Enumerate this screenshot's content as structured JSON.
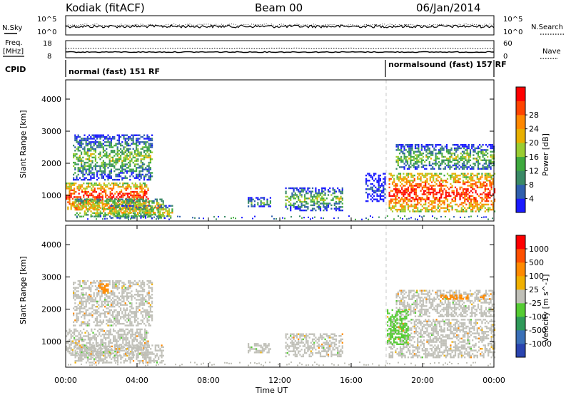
{
  "header": {
    "station": "Kodiak (fitACF)",
    "beam": "Beam 00",
    "date": "06/Jan/2014"
  },
  "noise_panel": {
    "left_label": "N.Sky",
    "right_label": "N.Search",
    "top_tick": "10^5",
    "bottom_tick": "10^0"
  },
  "freq_panel": {
    "left_label_1": "Freq.",
    "left_label_2": "[MHz]",
    "right_label": "Nave",
    "left_ticks": [
      "18",
      "8"
    ],
    "right_ticks": [
      "60",
      "0"
    ]
  },
  "cpid_panel": {
    "label": "CPID",
    "segments": [
      "normal (fast) 151 RF",
      "normalsound (fast) 157 RF"
    ]
  },
  "colors": {
    "power_scale": [
      "#1a1aff",
      "#2f5fae",
      "#3a8a66",
      "#3faa3f",
      "#9acd32",
      "#e8b000",
      "#ff8800",
      "#ff4400",
      "#ff0000"
    ],
    "velocity_scale": [
      "#2a44b0",
      "#3a70b8",
      "#2f9a5a",
      "#55cc33",
      "#c0c0b8",
      "#f0b000",
      "#ff8a00",
      "#ff5000",
      "#ff0000"
    ],
    "grey": "#bdbdb5"
  },
  "chart_data": [
    {
      "type": "heatmap",
      "name": "power",
      "xlabel": "",
      "ylabel": "Slant Range [km]",
      "xlim": [
        0,
        24
      ],
      "ylim": [
        200,
        4600
      ],
      "yticks": [
        "1000",
        "2000",
        "3000",
        "4000"
      ],
      "colorbar": {
        "label": "Power [dB]",
        "ticks": [
          "4",
          "8",
          "12",
          "16",
          "20",
          "24",
          "28"
        ]
      },
      "echo_regions": [
        {
          "t0": 0.0,
          "t1": 4.6,
          "r0": 600,
          "r1": 1400,
          "level": 8
        },
        {
          "t0": 0.5,
          "t1": 5.5,
          "r0": 350,
          "r1": 900,
          "level": 6
        },
        {
          "t0": 0.4,
          "t1": 4.8,
          "r0": 1500,
          "r1": 2900,
          "level": 4
        },
        {
          "t0": 2.5,
          "t1": 6.0,
          "r0": 300,
          "r1": 700,
          "level": 5
        },
        {
          "t0": 10.2,
          "t1": 11.5,
          "r0": 650,
          "r1": 950,
          "level": 3
        },
        {
          "t0": 12.3,
          "t1": 15.5,
          "r0": 550,
          "r1": 1250,
          "level": 4
        },
        {
          "t0": 16.8,
          "t1": 17.9,
          "r0": 800,
          "r1": 1700,
          "level": 1
        },
        {
          "t0": 18.1,
          "t1": 24.0,
          "r0": 500,
          "r1": 1700,
          "level": 8
        },
        {
          "t0": 18.5,
          "t1": 24.0,
          "r0": 1800,
          "r1": 2600,
          "level": 4
        }
      ]
    },
    {
      "type": "heatmap",
      "name": "velocity",
      "xlabel": "Time UT",
      "ylabel": "Slant Range [km]",
      "xlim": [
        0,
        24
      ],
      "ylim": [
        200,
        4600
      ],
      "xticks": [
        "00:00",
        "04:00",
        "08:00",
        "12:00",
        "16:00",
        "20:00",
        "00:00"
      ],
      "yticks": [
        "1000",
        "2000",
        "3000",
        "4000"
      ],
      "colorbar": {
        "label": "Velocity [m s^-1]",
        "ticks": [
          "1000",
          "500",
          "100",
          "25",
          "-25",
          "-100",
          "-500",
          "-1000"
        ]
      },
      "echo_regions": [
        {
          "t0": 0.0,
          "t1": 4.6,
          "r0": 600,
          "r1": 1400,
          "level": 4
        },
        {
          "t0": 0.5,
          "t1": 5.5,
          "r0": 350,
          "r1": 900,
          "level": 4
        },
        {
          "t0": 0.4,
          "t1": 4.8,
          "r0": 1500,
          "r1": 2900,
          "level": 4
        },
        {
          "t0": 10.2,
          "t1": 11.5,
          "r0": 650,
          "r1": 950,
          "level": 4
        },
        {
          "t0": 12.3,
          "t1": 15.5,
          "r0": 550,
          "r1": 1250,
          "level": 4
        },
        {
          "t0": 18.1,
          "t1": 24.0,
          "r0": 500,
          "r1": 1700,
          "level": 4
        },
        {
          "t0": 18.5,
          "t1": 24.0,
          "r0": 1800,
          "r1": 2600,
          "level": 4
        },
        {
          "t0": 1.8,
          "t1": 2.4,
          "r0": 2500,
          "r1": 2800,
          "level": 6
        },
        {
          "t0": 21.0,
          "t1": 22.5,
          "r0": 2300,
          "r1": 2450,
          "level": 6
        },
        {
          "t0": 23.2,
          "t1": 23.8,
          "r0": 2300,
          "r1": 2450,
          "level": 6
        },
        {
          "t0": 18.0,
          "t1": 19.2,
          "r0": 900,
          "r1": 2000,
          "level": 3
        }
      ]
    }
  ]
}
